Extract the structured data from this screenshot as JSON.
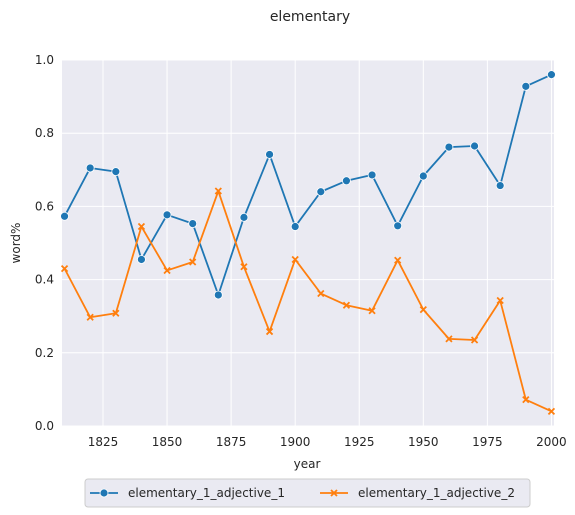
{
  "chart_data": {
    "type": "line",
    "title": "elementary",
    "xlabel": "year",
    "ylabel": "word%",
    "x": [
      1810,
      1820,
      1830,
      1840,
      1850,
      1860,
      1870,
      1880,
      1890,
      1900,
      1910,
      1920,
      1930,
      1940,
      1950,
      1960,
      1970,
      1980,
      1990,
      2000
    ],
    "xlim": [
      1809,
      2001
    ],
    "ylim": [
      0,
      1.0
    ],
    "x_ticks": [
      "1825",
      "1850",
      "1875",
      "1900",
      "1925",
      "1950",
      "1975",
      "2000"
    ],
    "y_ticks": [
      "0.0",
      "0.2",
      "0.4",
      "0.6",
      "0.8",
      "1.0"
    ],
    "grid": true,
    "legend_position": "bottom-center",
    "series": [
      {
        "name": "elementary_1_adjective_1",
        "color": "#1f77b4",
        "marker": "circle",
        "values": [
          0.573,
          0.705,
          0.695,
          0.455,
          0.577,
          0.553,
          0.358,
          0.57,
          0.742,
          0.545,
          0.64,
          0.67,
          0.686,
          0.547,
          0.683,
          0.762,
          0.765,
          0.657,
          0.928,
          0.96
        ]
      },
      {
        "name": "elementary_1_adjective_2",
        "color": "#ff7f0e",
        "marker": "x",
        "values": [
          0.43,
          0.297,
          0.308,
          0.545,
          0.425,
          0.448,
          0.642,
          0.435,
          0.258,
          0.455,
          0.362,
          0.33,
          0.315,
          0.453,
          0.318,
          0.238,
          0.235,
          0.343,
          0.072,
          0.04
        ]
      }
    ]
  }
}
